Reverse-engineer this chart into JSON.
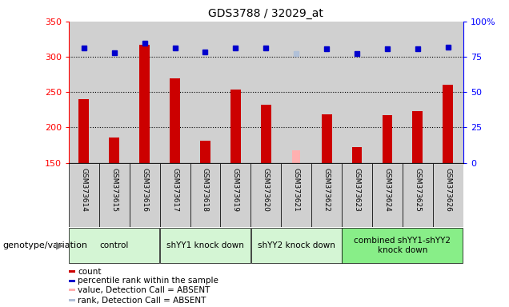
{
  "title": "GDS3788 / 32029_at",
  "samples": [
    "GSM373614",
    "GSM373615",
    "GSM373616",
    "GSM373617",
    "GSM373618",
    "GSM373619",
    "GSM373620",
    "GSM373621",
    "GSM373622",
    "GSM373623",
    "GSM373624",
    "GSM373625",
    "GSM373626"
  ],
  "counts": [
    240,
    186,
    317,
    269,
    181,
    254,
    232,
    null,
    218,
    172,
    217,
    223,
    260
  ],
  "absent_counts": [
    null,
    null,
    null,
    null,
    null,
    null,
    null,
    168,
    null,
    null,
    null,
    null,
    null
  ],
  "percentile_ranks": [
    313,
    306,
    319,
    313,
    307,
    313,
    313,
    null,
    311,
    305,
    311,
    311,
    314
  ],
  "absent_ranks": [
    null,
    null,
    null,
    null,
    null,
    null,
    null,
    305,
    null,
    null,
    null,
    null,
    null
  ],
  "ylim_left": [
    150,
    350
  ],
  "ylim_right": [
    0,
    100
  ],
  "yticks_left": [
    150,
    200,
    250,
    300,
    350
  ],
  "yticks_right": [
    0,
    25,
    50,
    75,
    100
  ],
  "groups": [
    {
      "label": "control",
      "start": 0,
      "end": 2,
      "color": "#d4f5d4"
    },
    {
      "label": "shYY1 knock down",
      "start": 3,
      "end": 5,
      "color": "#d4f5d4"
    },
    {
      "label": "shYY2 knock down",
      "start": 6,
      "end": 8,
      "color": "#d4f5d4"
    },
    {
      "label": "combined shYY1-shYY2\nknock down",
      "start": 9,
      "end": 12,
      "color": "#88ee88"
    }
  ],
  "bar_color": "#cc0000",
  "absent_bar_color": "#ffb0b0",
  "rank_color": "#0000cc",
  "absent_rank_color": "#b0c0d8",
  "col_bg_color": "#d0d0d0",
  "plot_bg_color": "#ffffff",
  "legend": [
    {
      "color": "#cc0000",
      "label": "count"
    },
    {
      "color": "#0000cc",
      "label": "percentile rank within the sample"
    },
    {
      "color": "#ffb0b0",
      "label": "value, Detection Call = ABSENT"
    },
    {
      "color": "#b0c0d8",
      "label": "rank, Detection Call = ABSENT"
    }
  ],
  "xlabel_area": "genotype/variation",
  "bar_width": 0.75
}
